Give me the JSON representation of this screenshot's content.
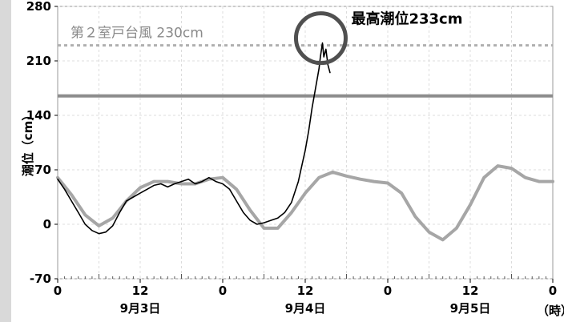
{
  "chart_data": {
    "type": "line",
    "ylabel": "潮位（cm）",
    "ylim": [
      -70,
      280
    ],
    "y_ticks": [
      -70,
      0,
      70,
      140,
      210,
      280
    ],
    "xlim": [
      0,
      72
    ],
    "x_ticks": [
      {
        "x": 0,
        "label": "0"
      },
      {
        "x": 12,
        "label": "12"
      },
      {
        "x": 24,
        "label": "0"
      },
      {
        "x": 36,
        "label": "12"
      },
      {
        "x": 48,
        "label": "0"
      },
      {
        "x": 60,
        "label": "12"
      },
      {
        "x": 72,
        "label": "0"
      }
    ],
    "day_labels": [
      {
        "x": 12,
        "label": "9月3日"
      },
      {
        "x": 36,
        "label": "9月4日"
      },
      {
        "x": 60,
        "label": "9月5日"
      }
    ],
    "x_unit_label": "（時）",
    "grid": true,
    "reference_lines": [
      {
        "value": 230,
        "label": "第２室戸台風 230cm",
        "style": "dashed",
        "color": "#b0b0b0"
      },
      {
        "value": 165,
        "label": "",
        "style": "solid",
        "color": "#8c8c8c"
      }
    ],
    "annotation": {
      "label": "最高潮位233cm",
      "x": 38.5,
      "y": 233
    },
    "series": [
      {
        "color": "#a6a6a6",
        "x": [
          0,
          2,
          4,
          6,
          8,
          10,
          12,
          14,
          16,
          18,
          20,
          22,
          24,
          26,
          28,
          30,
          32,
          34,
          36,
          38,
          40,
          42,
          44,
          46,
          48,
          50,
          52,
          54,
          56,
          58,
          60,
          62,
          64,
          66,
          68,
          70,
          72
        ],
        "values": [
          60,
          38,
          12,
          -2,
          8,
          30,
          47,
          55,
          55,
          52,
          52,
          58,
          60,
          45,
          18,
          -5,
          -5,
          15,
          40,
          60,
          67,
          62,
          58,
          55,
          53,
          40,
          10,
          -10,
          -20,
          -5,
          25,
          60,
          75,
          72,
          60,
          55,
          55
        ]
      },
      {
        "color": "#000000",
        "x": [
          0,
          1,
          2,
          3,
          4,
          5,
          6,
          7,
          8,
          9,
          10,
          11,
          12,
          13,
          14,
          15,
          16,
          17,
          18,
          19,
          20,
          21,
          22,
          23,
          24,
          25,
          26,
          27,
          28,
          29,
          30,
          31,
          32,
          33,
          34,
          35,
          35.5,
          36,
          36.5,
          37,
          37.5,
          38,
          38.2,
          38.5,
          38.7,
          39,
          39.3,
          39.6
        ],
        "values": [
          58,
          45,
          30,
          15,
          0,
          -8,
          -12,
          -10,
          -2,
          15,
          30,
          35,
          40,
          45,
          50,
          52,
          48,
          52,
          55,
          58,
          52,
          55,
          60,
          55,
          52,
          45,
          30,
          15,
          5,
          0,
          2,
          5,
          8,
          15,
          28,
          55,
          75,
          95,
          120,
          150,
          175,
          200,
          215,
          233,
          215,
          225,
          205,
          195
        ]
      }
    ]
  }
}
